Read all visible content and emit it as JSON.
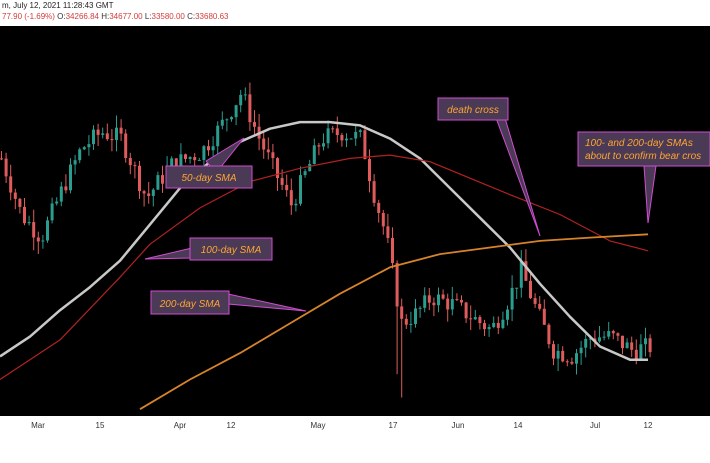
{
  "header": {
    "line1": "m, July 12, 2021 11:28:43 GMT",
    "change_prefix": "77.90 (-1.69%)",
    "open_label": "O:",
    "open_value": "34266.84",
    "high_label": "H:",
    "high_value": "34677.00",
    "low_label": "L:",
    "low_value": "33580.00",
    "close_label": "C:",
    "close_value": "33680.63"
  },
  "annotations": {
    "sma50": "50-day SMA",
    "sma100": "100-day SMA",
    "sma200": "200-day SMA",
    "death_cross": "death cross",
    "bear_cross_line1": "100- and 200-day SMAs",
    "bear_cross_line2": "about to confirm bear cros"
  },
  "colors": {
    "up": "#2a9d8f",
    "down": "#e05c5c",
    "sma50": "#c8c8c8",
    "sma100": "#b22222",
    "sma200": "#d7832a",
    "callout_fill": "#4a3a55",
    "callout_border": "#d24bd2",
    "callout_text": "#ffa533"
  },
  "chart_data": {
    "type": "line",
    "title": "",
    "xlabel": "",
    "ylabel": "",
    "x_ticks": [
      "Mar",
      "15",
      "Apr",
      "12",
      "May",
      "17",
      "Jun",
      "14",
      "Jul",
      "12"
    ],
    "series": [
      {
        "name": "50-day SMA",
        "x": [
          0,
          30,
          60,
          90,
          120,
          150,
          180,
          210,
          240,
          270,
          300,
          330,
          360,
          390,
          420,
          450,
          480,
          510,
          540,
          570,
          600,
          630,
          648
        ],
        "y": [
          0.12,
          0.18,
          0.26,
          0.33,
          0.41,
          0.52,
          0.63,
          0.71,
          0.77,
          0.81,
          0.83,
          0.83,
          0.82,
          0.78,
          0.72,
          0.63,
          0.54,
          0.45,
          0.34,
          0.24,
          0.15,
          0.11,
          0.11
        ]
      },
      {
        "name": "100-day SMA",
        "x": [
          0,
          60,
          120,
          150,
          200,
          250,
          300,
          350,
          390,
          430,
          470,
          510,
          560,
          610,
          648
        ],
        "y": [
          0.05,
          0.17,
          0.36,
          0.46,
          0.57,
          0.65,
          0.69,
          0.72,
          0.73,
          0.71,
          0.66,
          0.61,
          0.55,
          0.47,
          0.44
        ]
      },
      {
        "name": "200-day SMA",
        "x": [
          140,
          190,
          240,
          290,
          340,
          390,
          440,
          490,
          540,
          590,
          648
        ],
        "y": [
          -0.04,
          0.05,
          0.13,
          0.22,
          0.31,
          0.39,
          0.43,
          0.45,
          0.47,
          0.48,
          0.49
        ]
      }
    ]
  }
}
